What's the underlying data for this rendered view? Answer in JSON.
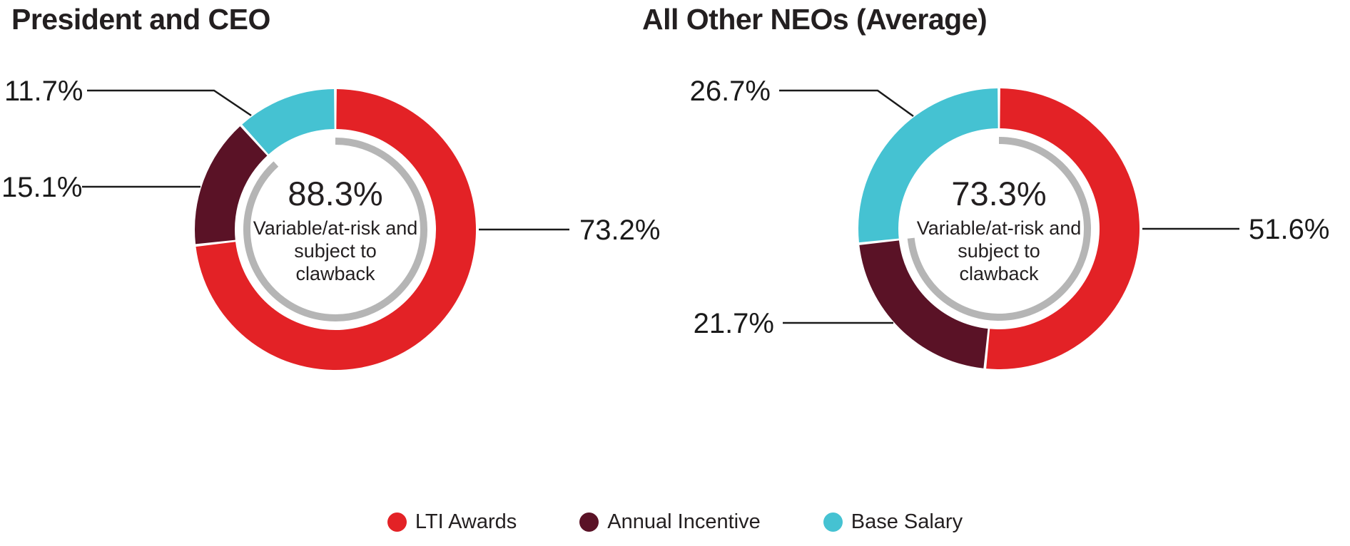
{
  "colors": {
    "lti_awards": "#E32226",
    "annual_incentive": "#5A1226",
    "base_salary": "#45C2D2",
    "inner_arc": "#B5B5B5",
    "text": "#231F20"
  },
  "chart_data": [
    {
      "type": "donut",
      "title": "President and CEO",
      "center": {
        "value": "88.3%",
        "label": "Variable/at-risk and subject to clawback"
      },
      "inner_ring_pct": 88.3,
      "segments": [
        {
          "name": "LTI Awards",
          "value": 73.2,
          "label": "73.2%",
          "color": "#E32226"
        },
        {
          "name": "Annual Incentive",
          "value": 15.1,
          "label": "15.1%",
          "color": "#5A1226"
        },
        {
          "name": "Base Salary",
          "value": 11.7,
          "label": "11.7%",
          "color": "#45C2D2"
        }
      ]
    },
    {
      "type": "donut",
      "title": "All Other NEOs (Average)",
      "center": {
        "value": "73.3%",
        "label": "Variable/at-risk and subject to clawback"
      },
      "inner_ring_pct": 73.3,
      "segments": [
        {
          "name": "LTI Awards",
          "value": 51.6,
          "label": "51.6%",
          "color": "#E32226"
        },
        {
          "name": "Annual Incentive",
          "value": 21.7,
          "label": "21.7%",
          "color": "#5A1226"
        },
        {
          "name": "Base Salary",
          "value": 26.7,
          "label": "26.7%",
          "color": "#45C2D2"
        }
      ]
    }
  ],
  "legend": {
    "items": [
      {
        "label": "LTI Awards",
        "color": "#E32226"
      },
      {
        "label": "Annual Incentive",
        "color": "#5A1226"
      },
      {
        "label": "Base Salary",
        "color": "#45C2D2"
      }
    ]
  }
}
